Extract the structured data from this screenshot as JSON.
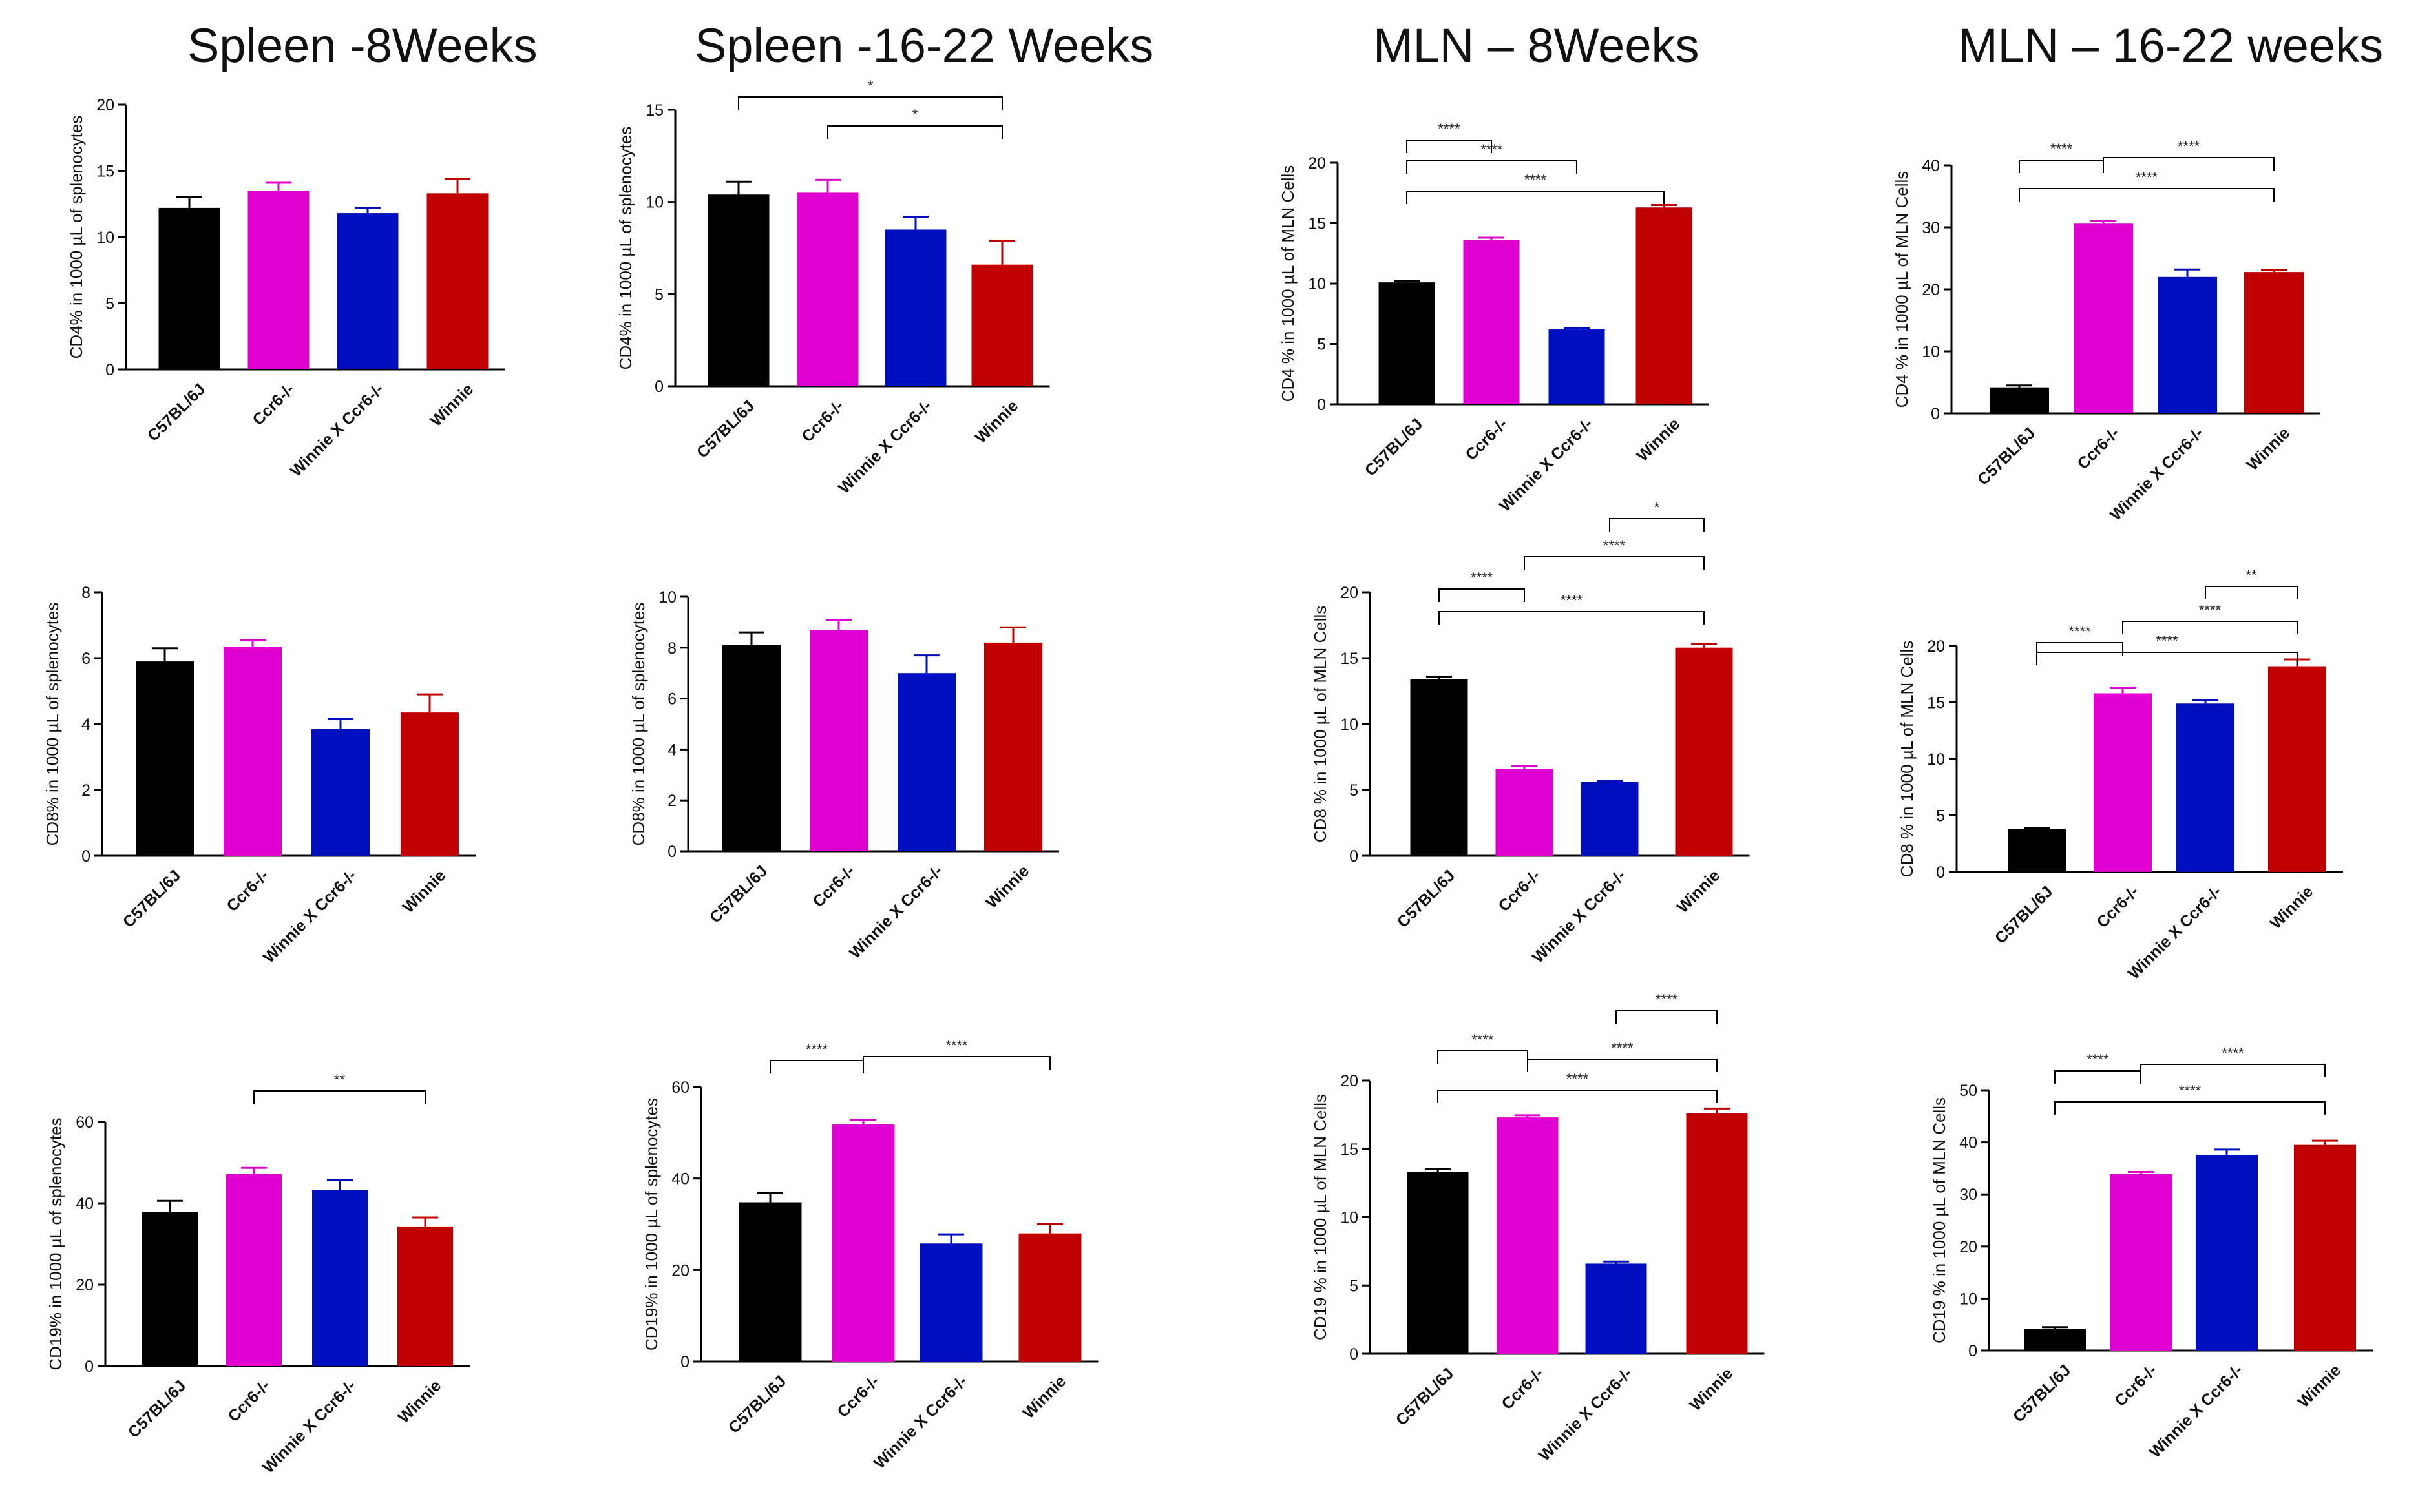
{
  "column_titles": [
    "Spleen -8Weeks",
    "Spleen -16-22 Weeks",
    "MLN – 8Weeks",
    "MLN – 16-22 weeks"
  ],
  "colors": {
    "C57BL/6J": "#000000",
    "Ccr6-/-": "#e000d0",
    "Winnie X Ccr6-/-": "#0010c0",
    "Winnie": "#c00000"
  },
  "chart_data": [
    {
      "type": "bar",
      "ylabel": "CD4% in 1000 µL of splenocytes",
      "categories": [
        "C57BL/6J",
        "Ccr6-/-",
        "Winnie X Ccr6-/-",
        "Winnie"
      ],
      "values": [
        12.2,
        13.5,
        11.8,
        13.3
      ],
      "errors": [
        0.8,
        0.6,
        0.4,
        1.1
      ],
      "ylim": [
        0,
        20
      ],
      "ticks": [
        0,
        5,
        10,
        15,
        20
      ],
      "significance": []
    },
    {
      "type": "bar",
      "ylabel": "CD4% in 1000 µL of splenocytes",
      "categories": [
        "C57BL/6J",
        "Ccr6-/-",
        "Winnie X Ccr6-/-",
        "Winnie"
      ],
      "values": [
        10.4,
        10.5,
        8.5,
        6.6
      ],
      "errors": [
        0.7,
        0.7,
        0.7,
        1.3
      ],
      "ylim": [
        0,
        15
      ],
      "ticks": [
        0,
        5,
        10,
        15
      ],
      "significance": [
        {
          "pair": [
            0,
            3
          ],
          "label": "*"
        },
        {
          "pair": [
            1,
            3
          ],
          "label": "*"
        }
      ]
    },
    {
      "type": "bar",
      "ylabel": "CD4 % in 1000 µL of MLN Cells",
      "categories": [
        "C57BL/6J",
        "Ccr6-/-",
        "Winnie X Ccr6-/-",
        "Winnie"
      ],
      "values": [
        10.1,
        13.6,
        6.2,
        16.3
      ],
      "errors": [
        0.1,
        0.2,
        0.1,
        0.2
      ],
      "ylim": [
        0,
        20
      ],
      "ticks": [
        0,
        5,
        10,
        15,
        20
      ],
      "significance": [
        {
          "pair": [
            0,
            1
          ],
          "label": "****"
        },
        {
          "pair": [
            0,
            2
          ],
          "label": "****"
        },
        {
          "pair": [
            0,
            3
          ],
          "label": "****"
        }
      ]
    },
    {
      "type": "bar",
      "ylabel": "CD4 % in 1000 µL of MLN Cells",
      "categories": [
        "C57BL/6J",
        "Ccr6-/-",
        "Winnie X Ccr6-/-",
        "Winnie"
      ],
      "values": [
        4.2,
        30.6,
        22.0,
        22.8
      ],
      "errors": [
        0.3,
        0.4,
        1.2,
        0.3
      ],
      "ylim": [
        0,
        40
      ],
      "ticks": [
        0,
        10,
        20,
        30,
        40
      ],
      "significance": [
        {
          "pair": [
            0,
            1
          ],
          "label": "****"
        },
        {
          "pair": [
            1,
            3
          ],
          "label": "****"
        },
        {
          "pair": [
            0,
            3
          ],
          "label": "****"
        }
      ]
    },
    {
      "type": "bar",
      "ylabel": "CD8% in 1000 µL of splenocytes",
      "categories": [
        "C57BL/6J",
        "Ccr6-/-",
        "Winnie X Ccr6-/-",
        "Winnie"
      ],
      "values": [
        5.9,
        6.35,
        3.85,
        4.35
      ],
      "errors": [
        0.4,
        0.2,
        0.3,
        0.55
      ],
      "ylim": [
        0,
        8
      ],
      "ticks": [
        0,
        2,
        4,
        6,
        8
      ],
      "significance": []
    },
    {
      "type": "bar",
      "ylabel": "CD8% in 1000 µL of splenocytes",
      "categories": [
        "C57BL/6J",
        "Ccr6-/-",
        "Winnie X Ccr6-/-",
        "Winnie"
      ],
      "values": [
        8.1,
        8.7,
        7.0,
        8.2
      ],
      "errors": [
        0.5,
        0.4,
        0.7,
        0.6
      ],
      "ylim": [
        0,
        10
      ],
      "ticks": [
        0,
        2,
        4,
        6,
        8,
        10
      ],
      "significance": []
    },
    {
      "type": "bar",
      "ylabel": "CD8 % in 1000 µL of MLN Cells",
      "categories": [
        "C57BL/6J",
        "Ccr6-/-",
        "Winnie X Ccr6-/-",
        "Winnie"
      ],
      "values": [
        13.4,
        6.6,
        5.6,
        15.8
      ],
      "errors": [
        0.2,
        0.2,
        0.1,
        0.3
      ],
      "ylim": [
        0,
        20
      ],
      "ticks": [
        0,
        5,
        10,
        15,
        20
      ],
      "significance": [
        {
          "pair": [
            2,
            3
          ],
          "label": "*"
        },
        {
          "pair": [
            1,
            3
          ],
          "label": "****"
        },
        {
          "pair": [
            0,
            1
          ],
          "label": "****"
        },
        {
          "pair": [
            0,
            3
          ],
          "label": "****"
        }
      ]
    },
    {
      "type": "bar",
      "ylabel": "CD8 % in 1000 µL of MLN Cells",
      "categories": [
        "C57BL/6J",
        "Ccr6-/-",
        "Winnie X Ccr6-/-",
        "Winnie"
      ],
      "values": [
        3.8,
        15.8,
        14.9,
        18.2
      ],
      "errors": [
        0.1,
        0.5,
        0.3,
        0.6
      ],
      "ylim": [
        0,
        20
      ],
      "ticks": [
        0,
        5,
        10,
        15,
        20
      ],
      "significance": [
        {
          "pair": [
            2,
            3
          ],
          "label": "**"
        },
        {
          "pair": [
            0,
            1
          ],
          "label": "****"
        },
        {
          "pair": [
            1,
            3
          ],
          "label": "****"
        },
        {
          "pair": [
            0,
            3
          ],
          "label": "****"
        }
      ]
    },
    {
      "type": "bar",
      "ylabel": "CD19% in 1000 µL of splenocytes",
      "categories": [
        "C57BL/6J",
        "Ccr6-/-",
        "Winnie X Ccr6-/-",
        "Winnie"
      ],
      "values": [
        37.8,
        47.2,
        43.2,
        34.3
      ],
      "errors": [
        2.8,
        1.5,
        2.5,
        2.2
      ],
      "ylim": [
        0,
        60
      ],
      "ticks": [
        0,
        20,
        40,
        60
      ],
      "significance": [
        {
          "pair": [
            1,
            3
          ],
          "label": "**"
        }
      ]
    },
    {
      "type": "bar",
      "ylabel": "CD19% in 1000 µL of splenocytes",
      "categories": [
        "C57BL/6J",
        "Ccr6-/-",
        "Winnie X Ccr6-/-",
        "Winnie"
      ],
      "values": [
        34.8,
        51.8,
        25.8,
        28.0
      ],
      "errors": [
        2.0,
        1.0,
        2.0,
        2.0
      ],
      "ylim": [
        0,
        60
      ],
      "ticks": [
        0,
        20,
        40,
        60
      ],
      "significance": [
        {
          "pair": [
            0,
            1
          ],
          "label": "****"
        },
        {
          "pair": [
            1,
            3
          ],
          "label": "****"
        }
      ]
    },
    {
      "type": "bar",
      "ylabel": "CD19 % in 1000 µL of MLN Cells",
      "categories": [
        "C57BL/6J",
        "Ccr6-/-",
        "Winnie X Ccr6-/-",
        "Winnie"
      ],
      "values": [
        13.3,
        17.3,
        6.6,
        17.6
      ],
      "errors": [
        0.2,
        0.15,
        0.15,
        0.35
      ],
      "ylim": [
        0,
        20
      ],
      "ticks": [
        0,
        5,
        10,
        15,
        20
      ],
      "significance": [
        {
          "pair": [
            2,
            3
          ],
          "label": "****"
        },
        {
          "pair": [
            0,
            1
          ],
          "label": "****"
        },
        {
          "pair": [
            1,
            3
          ],
          "label": "****"
        },
        {
          "pair": [
            0,
            3
          ],
          "label": "****"
        }
      ]
    },
    {
      "type": "bar",
      "ylabel": "CD19 % in 1000 µL of MLN Cells",
      "categories": [
        "C57BL/6J",
        "Ccr6-/-",
        "Winnie X Ccr6-/-",
        "Winnie"
      ],
      "values": [
        4.2,
        33.9,
        37.6,
        39.5
      ],
      "errors": [
        0.3,
        0.4,
        1.0,
        0.8
      ],
      "ylim": [
        0,
        50
      ],
      "ticks": [
        0,
        10,
        20,
        30,
        40,
        50
      ],
      "significance": [
        {
          "pair": [
            0,
            1
          ],
          "label": "****"
        },
        {
          "pair": [
            1,
            3
          ],
          "label": "****"
        },
        {
          "pair": [
            0,
            3
          ],
          "label": "****"
        }
      ]
    }
  ]
}
